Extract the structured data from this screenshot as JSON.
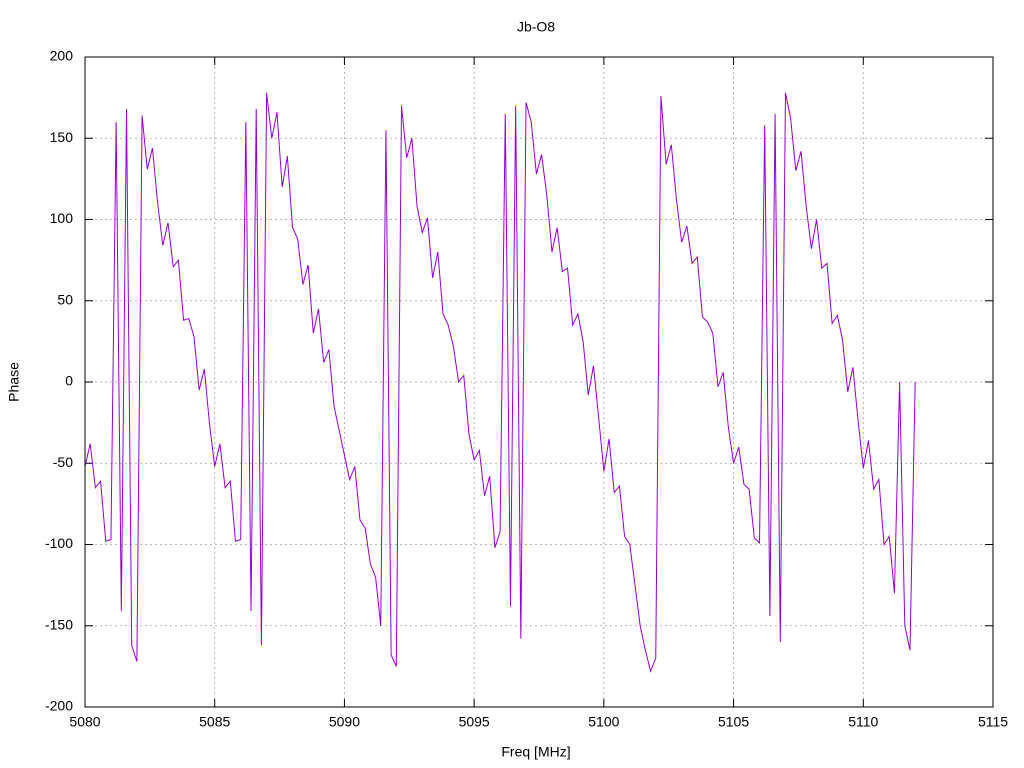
{
  "chart_data": {
    "type": "line",
    "title": "Jb-O8",
    "x_label": "Freq [MHz]",
    "y_label": "Phase",
    "color": "#9400d3",
    "grid": true,
    "xlim": [
      5080,
      5115
    ],
    "xticks": [
      5080,
      5085,
      5090,
      5095,
      5100,
      5105,
      5110,
      5115
    ],
    "ylim": [
      -200,
      200
    ],
    "yticks": [
      -200,
      -150,
      -100,
      -50,
      0,
      50,
      100,
      150,
      200
    ],
    "x": [
      5080.0,
      5080.2,
      5080.4,
      5080.6,
      5080.8,
      5081.0,
      5081.2,
      5081.4,
      5081.6,
      5081.8,
      5082.0,
      5082.2,
      5082.4,
      5082.6,
      5082.8,
      5083.0,
      5083.2,
      5083.4,
      5083.6,
      5083.8,
      5084.0,
      5084.2,
      5084.4,
      5084.6,
      5084.8,
      5085.0,
      5085.2,
      5085.4,
      5085.6,
      5085.8,
      5086.0,
      5086.2,
      5086.4,
      5086.6,
      5086.8,
      5087.0,
      5087.2,
      5087.4,
      5087.6,
      5087.8,
      5088.0,
      5088.2,
      5088.4,
      5088.6,
      5088.8,
      5089.0,
      5089.2,
      5089.4,
      5089.6,
      5089.8,
      5090.0,
      5090.2,
      5090.4,
      5090.6,
      5090.8,
      5091.0,
      5091.2,
      5091.4,
      5091.6,
      5091.8,
      5092.0,
      5092.2,
      5092.4,
      5092.6,
      5092.8,
      5093.0,
      5093.2,
      5093.4,
      5093.6,
      5093.8,
      5094.0,
      5094.2,
      5094.4,
      5094.6,
      5094.8,
      5095.0,
      5095.2,
      5095.4,
      5095.6,
      5095.8,
      5096.0,
      5096.2,
      5096.4,
      5096.6,
      5096.8,
      5097.0,
      5097.2,
      5097.4,
      5097.6,
      5097.8,
      5098.0,
      5098.2,
      5098.4,
      5098.6,
      5098.8,
      5099.0,
      5099.2,
      5099.4,
      5099.6,
      5099.8,
      5100.0,
      5100.2,
      5100.4,
      5100.6,
      5100.8,
      5101.0,
      5101.2,
      5101.4,
      5101.6,
      5101.8,
      5102.0,
      5102.2,
      5102.4,
      5102.6,
      5102.8,
      5103.0,
      5103.2,
      5103.4,
      5103.6,
      5103.8,
      5104.0,
      5104.2,
      5104.4,
      5104.6,
      5104.8,
      5105.0,
      5105.2,
      5105.4,
      5105.6,
      5105.8,
      5106.0,
      5106.2,
      5106.4,
      5106.6,
      5106.8,
      5107.0,
      5107.2,
      5107.4,
      5107.6,
      5107.8,
      5108.0,
      5108.2,
      5108.4,
      5108.6,
      5108.8,
      5109.0,
      5109.2,
      5109.4,
      5109.6,
      5109.8,
      5110.0,
      5110.2,
      5110.4,
      5110.6,
      5110.8,
      5111.0,
      5111.2,
      5111.4,
      5111.6,
      5111.8,
      5112.0
    ],
    "values": [
      -52,
      -38,
      -65,
      -61,
      -98,
      -97,
      160,
      -141,
      168,
      -162,
      -172,
      164,
      131,
      144,
      110,
      84,
      98,
      71,
      75,
      38,
      39,
      28,
      -5,
      8,
      -26,
      -52,
      -38,
      -65,
      -61,
      -98,
      -97,
      160,
      -141,
      168,
      -162,
      178,
      150,
      166,
      120,
      139,
      95,
      88,
      60,
      72,
      30,
      45,
      12,
      20,
      -15,
      -30,
      -45,
      -60,
      -52,
      -85,
      -90,
      -112,
      -120,
      -150,
      155,
      -168,
      -175,
      170,
      138,
      150,
      108,
      92,
      101,
      64,
      80,
      42,
      35,
      22,
      0,
      4,
      -32,
      -48,
      -42,
      -70,
      -58,
      -102,
      -92,
      165,
      -138,
      170,
      -158,
      172,
      160,
      128,
      140,
      115,
      80,
      95,
      68,
      70,
      35,
      42,
      25,
      -8,
      10,
      -22,
      -55,
      -35,
      -68,
      -64,
      -95,
      -100,
      -125,
      -150,
      -165,
      -178,
      -170,
      176,
      134,
      146,
      112,
      86,
      96,
      73,
      77,
      40,
      37,
      30,
      -3,
      6,
      -28,
      -50,
      -40,
      -63,
      -66,
      -96,
      -99,
      158,
      -144,
      165,
      -160,
      178,
      162,
      130,
      142,
      108,
      82,
      100,
      70,
      73,
      36,
      41,
      26,
      -6,
      9,
      -24,
      -53,
      -36,
      -66,
      -60,
      -100,
      -95,
      -130,
      0,
      -150,
      -165,
      0
    ]
  }
}
